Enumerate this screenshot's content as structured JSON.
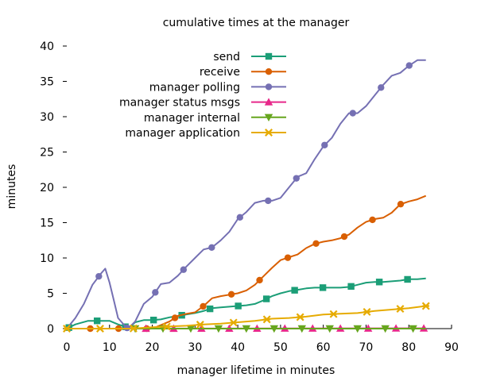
{
  "chart_data": {
    "type": "line",
    "title": "cumulative times at the manager",
    "xlabel": "manager lifetime in minutes",
    "ylabel": "minutes",
    "xlim": [
      0,
      90
    ],
    "ylim": [
      0,
      40
    ],
    "xticks": [
      0,
      10,
      20,
      30,
      40,
      50,
      60,
      70,
      80,
      90
    ],
    "yticks": [
      0,
      5,
      10,
      15,
      20,
      25,
      30,
      35,
      40
    ],
    "grid": false,
    "legend_position": "top-right",
    "series": [
      {
        "name": "send",
        "color": "#1b9e77",
        "marker": "square",
        "x": [
          0,
          2,
          5,
          8,
          10,
          12,
          14.5,
          16,
          18,
          20,
          22,
          24,
          26,
          28,
          30,
          32,
          34,
          36,
          38,
          40,
          42,
          44,
          46,
          48,
          50,
          52,
          54,
          56,
          58,
          60,
          62,
          64,
          66,
          68,
          70,
          72,
          74,
          76,
          78,
          80,
          82,
          84
        ],
        "y": [
          0,
          0.6,
          1.1,
          1.1,
          1.1,
          0.6,
          0.1,
          0.9,
          1.2,
          1.2,
          1.3,
          1.6,
          1.8,
          2.0,
          2.2,
          2.5,
          2.9,
          3.0,
          3.1,
          3.2,
          3.3,
          3.5,
          4.0,
          4.6,
          5.0,
          5.3,
          5.5,
          5.7,
          5.8,
          5.8,
          5.8,
          5.8,
          5.9,
          6.2,
          6.5,
          6.6,
          6.6,
          6.7,
          6.8,
          7.0,
          7.0,
          7.1
        ]
      },
      {
        "name": "receive",
        "color": "#d95f02",
        "marker": "circle",
        "x": [
          0,
          5,
          10,
          15,
          20,
          24,
          26,
          28,
          30,
          32,
          34,
          36,
          38,
          40,
          42,
          44,
          46,
          48,
          50,
          52,
          54,
          56,
          58,
          60,
          62,
          64,
          66,
          68,
          70,
          72,
          74,
          76,
          78,
          80,
          82,
          84
        ],
        "y": [
          0,
          0,
          0,
          0,
          0,
          1.0,
          1.8,
          2.1,
          2.3,
          3.2,
          4.3,
          4.6,
          4.8,
          5.0,
          5.4,
          6.2,
          7.4,
          8.6,
          9.7,
          10.1,
          10.5,
          11.4,
          12.0,
          12.3,
          12.5,
          12.8,
          13.3,
          14.3,
          15.1,
          15.5,
          15.7,
          16.4,
          17.6,
          18.0,
          18.3,
          18.8
        ]
      },
      {
        "name": "manager polling",
        "color": "#7570b3",
        "marker": "circle",
        "x": [
          0,
          2,
          4,
          6,
          8,
          9,
          10,
          11,
          12,
          14,
          14.5,
          16,
          18,
          20,
          22,
          24,
          26,
          28,
          30,
          32,
          34,
          36,
          38,
          40,
          42,
          44,
          46,
          48,
          50,
          52,
          54,
          56,
          58,
          60,
          62,
          64,
          66,
          68,
          70,
          72,
          74,
          76,
          78,
          80,
          82,
          84
        ],
        "y": [
          0,
          1.5,
          3.5,
          6.2,
          7.8,
          8.5,
          6.5,
          4.0,
          1.5,
          0.1,
          0.1,
          1.0,
          3.5,
          4.5,
          6.3,
          6.5,
          7.5,
          8.8,
          10.0,
          11.2,
          11.5,
          12.5,
          13.7,
          15.5,
          16.5,
          17.8,
          18.1,
          18.1,
          18.5,
          20.0,
          21.5,
          22.0,
          24.0,
          25.8,
          27.0,
          29.0,
          30.5,
          30.5,
          31.5,
          33.0,
          34.5,
          35.8,
          36.2,
          37.2,
          38.0,
          38.0
        ]
      },
      {
        "name": "manager status msgs",
        "color": "#e7298a",
        "marker": "triangle-up",
        "x": [
          0,
          84
        ],
        "y": [
          0,
          0.05
        ]
      },
      {
        "name": "manager internal",
        "color": "#66a61e",
        "marker": "triangle-down",
        "x": [
          0,
          84
        ],
        "y": [
          0,
          0
        ]
      },
      {
        "name": "manager application",
        "color": "#e6ab02",
        "marker": "star",
        "x": [
          0,
          10,
          15,
          20,
          24,
          28,
          32,
          36,
          40,
          44,
          48,
          52,
          56,
          60,
          64,
          68,
          72,
          76,
          80,
          84
        ],
        "y": [
          0,
          0,
          0,
          0.2,
          0.3,
          0.4,
          0.6,
          0.7,
          0.9,
          1.1,
          1.4,
          1.5,
          1.7,
          2.0,
          2.1,
          2.2,
          2.5,
          2.7,
          2.9,
          3.2
        ]
      }
    ]
  }
}
